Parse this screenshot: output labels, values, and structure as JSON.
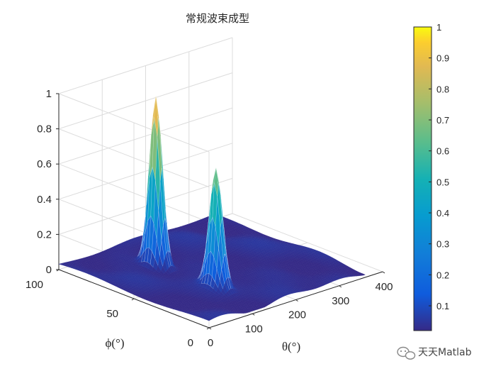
{
  "chart_data": {
    "type": "surface",
    "title": "常规波束成型",
    "xlabel": "θ(°)",
    "ylabel": "ϕ(°)",
    "zlabel": "",
    "xlim": [
      0,
      400
    ],
    "ylim": [
      0,
      100
    ],
    "zlim": [
      0,
      1
    ],
    "x_ticks": [
      "0",
      "100",
      "200",
      "300",
      "400"
    ],
    "y_ticks": [
      "0",
      "50",
      "100"
    ],
    "z_ticks": [
      "0",
      "0.2",
      "0.4",
      "0.6",
      "0.8",
      "1"
    ],
    "grid": true,
    "colormap": "parula",
    "colorbar": {
      "range": [
        0.02,
        1
      ],
      "ticks": [
        "0.1",
        "0.2",
        "0.3",
        "0.4",
        "0.5",
        "0.6",
        "0.7",
        "0.8",
        "0.9",
        "1"
      ]
    },
    "peaks": [
      {
        "theta": 120,
        "phi": 30,
        "z": 0.7
      },
      {
        "theta": 120,
        "phi": 70,
        "z": 1.0
      }
    ],
    "floor_level": 0.03
  },
  "watermark": {
    "text": "天天Matlab",
    "icon": "wechat-icon"
  }
}
